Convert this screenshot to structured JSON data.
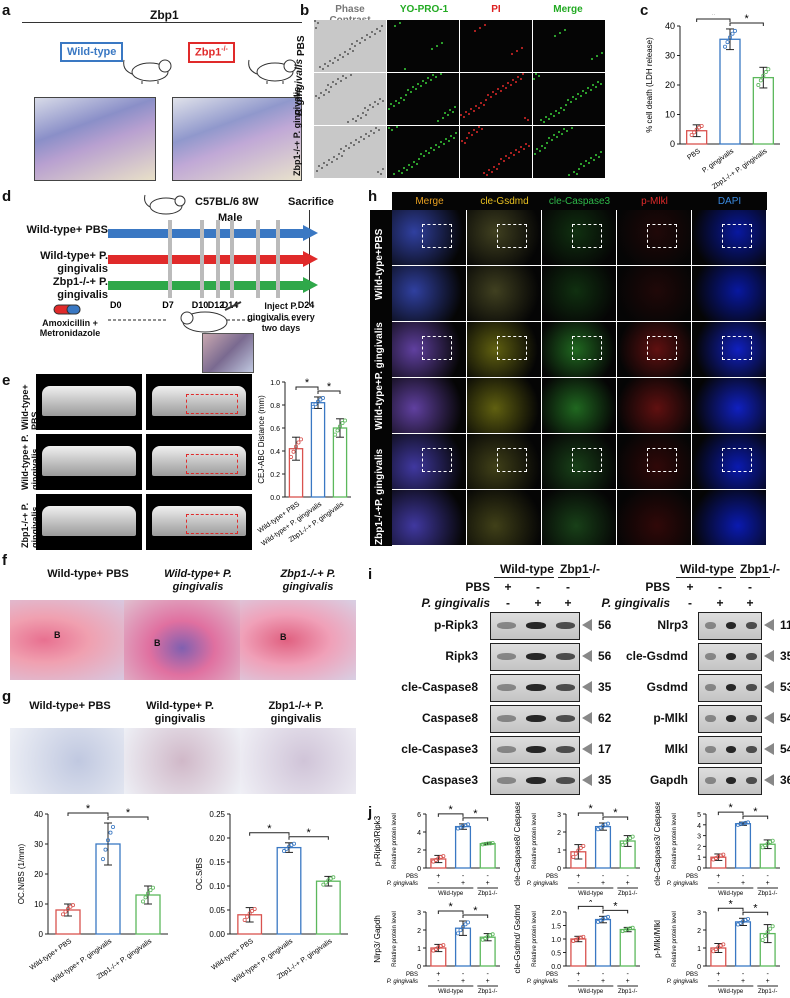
{
  "panels": {
    "a": "a",
    "b": "b",
    "c": "c",
    "d": "d",
    "e": "e",
    "f": "f",
    "g": "g",
    "h": "h",
    "i": "i",
    "j": "j"
  },
  "a": {
    "title": "Zbp1",
    "wt": "Wild-type",
    "ko": "Zbp1",
    "ko_sup": "-/-"
  },
  "b": {
    "cols": [
      "Phase Contrast",
      "YO-PRO-1",
      "PI",
      "Merge"
    ],
    "col_colors": [
      "#777777",
      "#22aa22",
      "#dd2222",
      "#22aa22"
    ],
    "rows": [
      "PBS",
      "P. gingivalis",
      "Zbp1-/-+ P. gingivalis"
    ]
  },
  "c": {
    "ylabel": "% cell death (LDH release)"
  },
  "d": {
    "mouse": "C57BL/6  8W",
    "male": "Male",
    "sacrifice": "Sacrifice",
    "groups": [
      "Wild-type+ PBS",
      "Wild-type+ P. gingivalis",
      "Zbp1-/-+ P. gingivalis"
    ],
    "group_colors": [
      "#3a78c3",
      "#e02a2a",
      "#2fa84a"
    ],
    "days": [
      "D0",
      "D7",
      "D10",
      "D12",
      "D14",
      "D24"
    ],
    "antibiotics": "Amoxicillin + Metronidazole",
    "inject": "Inject P. gingivalis every two days"
  },
  "e": {
    "rows": [
      "Wild-type+ PBS",
      "Wild-type+ P. gingivalis",
      "Zbp1-/-+ P. gingivalis"
    ],
    "ylabel": "CEJ-ABC Distance (mm)"
  },
  "f": {
    "cols": [
      "Wild-type+ PBS",
      "Wild-type+ P. gingivalis",
      "Zbp1-/-+ P. gingivalis"
    ],
    "marker": "B"
  },
  "g": {
    "cols": [
      "Wild-type+ PBS",
      "Wild-type+ P. gingivalis",
      "Zbp1-/-+ P. gingivalis"
    ],
    "ylabel1": "OC.N/BS (1/mm)",
    "ylabel2": "OC.S/BS"
  },
  "h": {
    "cols": [
      "Merge",
      "cle-Gsdmd",
      "cle-Caspase3",
      "p-Mlkl",
      "DAPI"
    ],
    "col_colors": [
      "#e8a020",
      "#e8c020",
      "#2fb84a",
      "#e02a2a",
      "#3a8ae0"
    ],
    "rows": [
      "Wild-type+PBS",
      "Wild-type+P. gingivalis",
      "Zbp1-/-+P. gingivalis"
    ]
  },
  "i": {
    "hdr_wt": "Wild-type",
    "hdr_ko": "Zbp1-/-",
    "pbs": "PBS",
    "pg": "P. gingivalis",
    "signs_pbs": [
      "+",
      "-",
      "-"
    ],
    "signs_pg": [
      "-",
      "+",
      "+"
    ],
    "left": [
      {
        "name": "p-Ripk3",
        "kda": "56"
      },
      {
        "name": "Ripk3",
        "kda": "56"
      },
      {
        "name": "cle-Caspase8",
        "kda": "35"
      },
      {
        "name": "Caspase8",
        "kda": "62"
      },
      {
        "name": "cle-Caspase3",
        "kda": "17"
      },
      {
        "name": "Caspase3",
        "kda": "35"
      }
    ],
    "right": [
      {
        "name": "Nlrp3",
        "kda": "110"
      },
      {
        "name": "cle-Gsdmd",
        "kda": "35"
      },
      {
        "name": "Gsdmd",
        "kda": "53"
      },
      {
        "name": "p-Mlkl",
        "kda": "54"
      },
      {
        "name": "Mlkl",
        "kda": "54"
      },
      {
        "name": "Gapdh",
        "kda": "36"
      }
    ]
  },
  "j": {
    "ylabel": "Relative protein level",
    "pbs": "PBS",
    "pg": "P. gingivalis",
    "wt": "Wild-type",
    "ko": "Zbp1-/-"
  },
  "colors": {
    "pbs": "#d9534f",
    "wt_pg": "#3a78c3",
    "ko_pg": "#5cb85c"
  },
  "chart_data": [
    {
      "id": "c",
      "type": "bar",
      "categories": [
        "PBS",
        "P. gingivalis",
        "Zbp1-/-+ P. gingivalis"
      ],
      "values": [
        4.5,
        35.5,
        22.5
      ],
      "errors": [
        2,
        3.5,
        3.5
      ],
      "ylim": [
        0,
        40
      ],
      "yticks": [
        0,
        10,
        20,
        30,
        40
      ],
      "ylabel": "% cell death (LDH release)"
    },
    {
      "id": "e",
      "type": "bar",
      "categories": [
        "Wild-type+ PBS",
        "Wild-type+ P. gingivalis",
        "Zbp1-/-+ P. gingivalis"
      ],
      "values": [
        0.42,
        0.82,
        0.6
      ],
      "errors": [
        0.1,
        0.05,
        0.08
      ],
      "ylim": [
        0.0,
        1.0
      ],
      "yticks": [
        0.0,
        0.2,
        0.4,
        0.6,
        0.8,
        1.0
      ],
      "ylabel": "CEJ-ABC Distance (mm)"
    },
    {
      "id": "g1",
      "type": "bar",
      "categories": [
        "Wild-type+ PBS",
        "Wild-type+ P. gingivalis",
        "Zbp1-/-+ P. gingivalis"
      ],
      "values": [
        8,
        30,
        13
      ],
      "errors": [
        2,
        7,
        3
      ],
      "ylim": [
        0,
        40
      ],
      "yticks": [
        0,
        10,
        20,
        30,
        40
      ],
      "ylabel": "OC.N/BS (1/mm)"
    },
    {
      "id": "g2",
      "type": "bar",
      "categories": [
        "Wild-type+ PBS",
        "Wild-type+ P. gingivalis",
        "Zbp1-/-+ P. gingivalis"
      ],
      "values": [
        0.04,
        0.18,
        0.11
      ],
      "errors": [
        0.015,
        0.01,
        0.01
      ],
      "ylim": [
        0,
        0.25
      ],
      "yticks": [
        0.0,
        0.05,
        0.1,
        0.15,
        0.2,
        0.25
      ],
      "ylabel": "OC.S/BS"
    },
    {
      "id": "j1",
      "type": "bar",
      "values": [
        1.0,
        4.6,
        2.7
      ],
      "errors": [
        0.4,
        0.3,
        0.1
      ],
      "ylim": [
        0,
        6
      ],
      "yticks": [
        0,
        2,
        4,
        6
      ],
      "title": "p-Ripk3/Ripk3"
    },
    {
      "id": "j2",
      "type": "bar",
      "values": [
        0.9,
        2.3,
        1.5
      ],
      "errors": [
        0.4,
        0.2,
        0.3
      ],
      "ylim": [
        0,
        3
      ],
      "yticks": [
        0,
        1,
        2,
        3
      ],
      "title": "cle-Caspase8/ Caspase8"
    },
    {
      "id": "j3",
      "type": "bar",
      "values": [
        1.0,
        4.1,
        2.2
      ],
      "errors": [
        0.3,
        0.15,
        0.4
      ],
      "ylim": [
        0,
        5
      ],
      "yticks": [
        0,
        1,
        2,
        3,
        4,
        5
      ],
      "title": "cle-Caspase3/ Caspase3"
    },
    {
      "id": "j4",
      "type": "bar",
      "values": [
        1.0,
        2.1,
        1.6
      ],
      "errors": [
        0.2,
        0.4,
        0.2
      ],
      "ylim": [
        0,
        3
      ],
      "yticks": [
        0,
        1,
        2,
        3
      ],
      "title": "Nlrp3/ Gapdh"
    },
    {
      "id": "j5",
      "type": "bar",
      "values": [
        1.0,
        1.72,
        1.35
      ],
      "errors": [
        0.1,
        0.12,
        0.08
      ],
      "ylim": [
        0,
        2.0
      ],
      "yticks": [
        0.0,
        0.5,
        1.0,
        1.5,
        2.0
      ],
      "title": "cle-Gsdmd/ Gsdmd"
    },
    {
      "id": "j6",
      "type": "bar",
      "values": [
        1.0,
        2.45,
        1.8
      ],
      "errors": [
        0.25,
        0.2,
        0.5
      ],
      "ylim": [
        0,
        3
      ],
      "yticks": [
        0,
        1,
        2,
        3
      ],
      "title": "p-Mlkl/Mlkl"
    }
  ]
}
